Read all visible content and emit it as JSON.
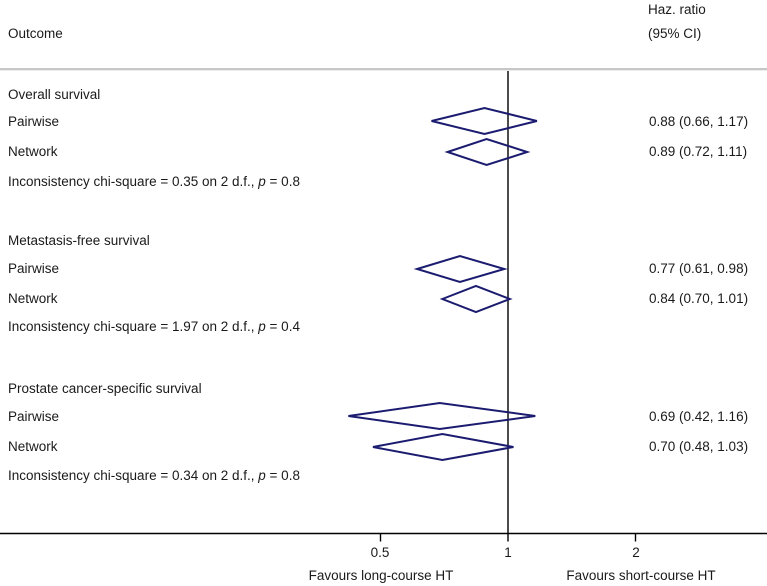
{
  "colors": {
    "diamond": "#1b1b70",
    "axis": "#000000",
    "separator": "#c7c7c7",
    "text": "#1a1a1a"
  },
  "chart_data": {
    "type": "forest",
    "x_scale": "log",
    "reference_line": 1,
    "x_ticks": [
      {
        "value": 0.5,
        "label": "0.5"
      },
      {
        "value": 1,
        "label": "1"
      },
      {
        "value": 2,
        "label": "2"
      }
    ],
    "xlabel_left": "Favours long-course HT",
    "xlabel_right": "Favours short-course HT",
    "columns": {
      "outcome": "Outcome",
      "hr_line1": "Haz. ratio",
      "hr_line2": "(95% CI)"
    },
    "groups": [
      {
        "outcome": "Overall survival",
        "rows": [
          {
            "analysis": "Pairwise",
            "hr": 0.88,
            "ci_low": 0.66,
            "ci_high": 1.17,
            "label": "0.88 (0.66, 1.17)"
          },
          {
            "analysis": "Network",
            "hr": 0.89,
            "ci_low": 0.72,
            "ci_high": 1.11,
            "label": "0.89 (0.72, 1.11)"
          }
        ],
        "inconsistency": {
          "before": "Inconsistency chi-square = 0.35 on 2 d.f., ",
          "p": "p",
          "after": " = 0.8"
        }
      },
      {
        "outcome": "Metastasis-free survival",
        "rows": [
          {
            "analysis": "Pairwise",
            "hr": 0.77,
            "ci_low": 0.61,
            "ci_high": 0.98,
            "label": "0.77 (0.61, 0.98)"
          },
          {
            "analysis": "Network",
            "hr": 0.84,
            "ci_low": 0.7,
            "ci_high": 1.01,
            "label": "0.84 (0.70, 1.01)"
          }
        ],
        "inconsistency": {
          "before": "Inconsistency chi-square = 1.97 on 2 d.f., ",
          "p": "p",
          "after": " = 0.4"
        }
      },
      {
        "outcome": "Prostate cancer-specific survival",
        "rows": [
          {
            "analysis": "Pairwise",
            "hr": 0.69,
            "ci_low": 0.42,
            "ci_high": 1.16,
            "label": "0.69 (0.42, 1.16)"
          },
          {
            "analysis": "Network",
            "hr": 0.7,
            "ci_low": 0.48,
            "ci_high": 1.03,
            "label": "0.70 (0.48, 1.03)"
          }
        ],
        "inconsistency": {
          "before": "Inconsistency chi-square = 0.34 on 2 d.f., ",
          "p": "p",
          "after": " = 0.8"
        }
      }
    ]
  }
}
